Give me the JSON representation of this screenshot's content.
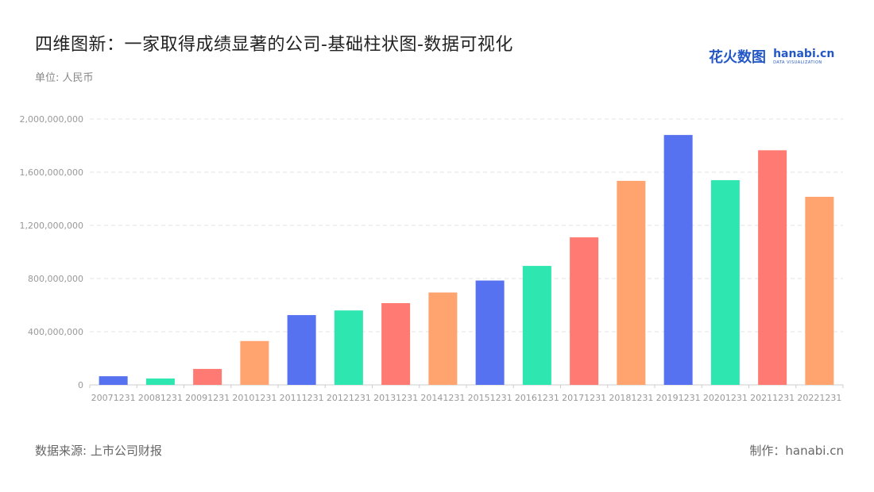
{
  "header": {
    "title": "四维图新：一家取得成绩显著的公司-基础柱状图-数据可视化",
    "unit": "单位: 人民币"
  },
  "logo": {
    "cn": "花火数图",
    "en": "hanabi.cn",
    "sub": "DATA VISUALIZATION"
  },
  "footer": {
    "source": "数据来源: 上市公司财报",
    "maker": "制作：hanabi.cn"
  },
  "colors": {
    "palette": [
      "#5672f0",
      "#2de6b0",
      "#ff7a72",
      "#ffa46e"
    ],
    "grid": "#e3e3e3",
    "axis": "#cccccc"
  },
  "chart_data": {
    "type": "bar",
    "title": "四维图新：一家取得成绩显著的公司-基础柱状图-数据可视化",
    "ylabel": "",
    "xlabel": "",
    "ylim": [
      0,
      2000000000
    ],
    "yticks": [
      0,
      400000000,
      800000000,
      1200000000,
      1600000000,
      2000000000
    ],
    "ytick_labels": [
      "0",
      "400,000,000",
      "800,000,000",
      "1,200,000,000",
      "1,600,000,000",
      "2,000,000,000"
    ],
    "grid": "horizontal dashed",
    "categories": [
      "20071231",
      "20081231",
      "20091231",
      "20101231",
      "20111231",
      "20121231",
      "20131231",
      "20141231",
      "20151231",
      "20161231",
      "20171231",
      "20181231",
      "20191231",
      "20201231",
      "20211231",
      "20221231"
    ],
    "values": [
      65000000,
      48000000,
      120000000,
      330000000,
      525000000,
      560000000,
      615000000,
      695000000,
      785000000,
      895000000,
      1110000000,
      1535000000,
      1880000000,
      1540000000,
      1765000000,
      1415000000
    ]
  }
}
